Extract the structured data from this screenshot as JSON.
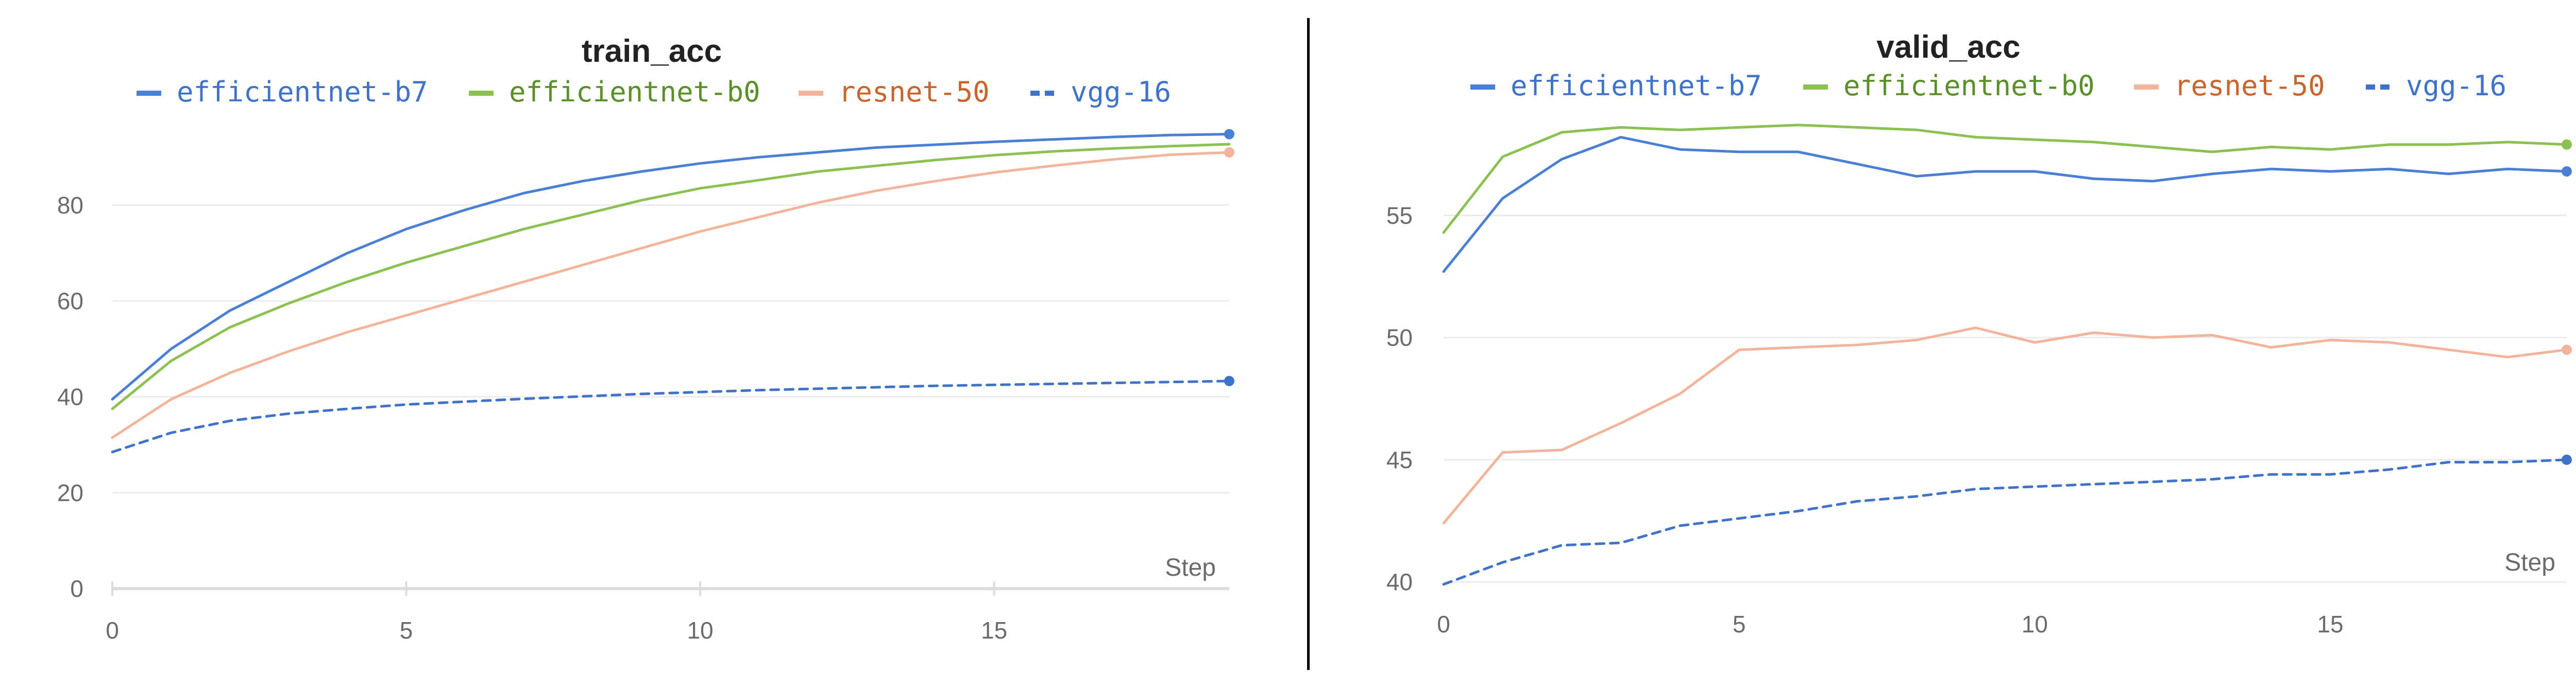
{
  "chart_data": [
    {
      "type": "line",
      "title": "train_acc",
      "xlabel": "Step",
      "ylabel": "",
      "xlim": [
        0,
        19
      ],
      "ylim": [
        0,
        97
      ],
      "x_ticks": [
        0,
        5,
        10,
        15
      ],
      "y_ticks": [
        0,
        20,
        40,
        60,
        80
      ],
      "grid": true,
      "legend_position": "top",
      "x": [
        0,
        1,
        2,
        3,
        4,
        5,
        6,
        7,
        8,
        9,
        10,
        11,
        12,
        13,
        14,
        15,
        16,
        17,
        18,
        19
      ],
      "series": [
        {
          "name": "efficientnet-b7",
          "color": "#4a7fd6",
          "text_color": "#3f72c9",
          "dashed": false,
          "end_marker": true,
          "values": [
            39.5,
            50,
            58,
            64,
            70,
            75,
            79,
            82.5,
            85,
            87,
            88.7,
            90,
            91,
            92,
            92.6,
            93.2,
            93.7,
            94.2,
            94.6,
            94.8
          ]
        },
        {
          "name": "efficientnet-b0",
          "color": "#8cc152",
          "text_color": "#5a8f2a",
          "dashed": false,
          "end_marker": false,
          "values": [
            37.5,
            47.5,
            54.5,
            59.5,
            64,
            68,
            71.5,
            75,
            78,
            81,
            83.5,
            85.2,
            87,
            88.2,
            89.4,
            90.4,
            91.2,
            91.8,
            92.3,
            92.7
          ]
        },
        {
          "name": "resnet-50",
          "color": "#f2b59b",
          "text_color": "#c8642e",
          "dashed": false,
          "end_marker": true,
          "values": [
            31.5,
            39.5,
            45,
            49.5,
            53.5,
            57,
            60.5,
            64,
            67.5,
            71,
            74.5,
            77.5,
            80.5,
            83,
            85,
            86.8,
            88.2,
            89.5,
            90.5,
            91
          ]
        },
        {
          "name": "vgg-16",
          "color": "#3f72c9",
          "text_color": "#3f72c9",
          "dashed": true,
          "end_marker": true,
          "values": [
            28.5,
            32.5,
            35,
            36.5,
            37.5,
            38.4,
            39,
            39.6,
            40.1,
            40.6,
            41,
            41.4,
            41.7,
            42,
            42.3,
            42.5,
            42.7,
            42.9,
            43.1,
            43.3
          ]
        }
      ]
    },
    {
      "type": "line",
      "title": "valid_acc",
      "xlabel": "Step",
      "ylabel": "",
      "xlim": [
        0,
        19
      ],
      "ylim": [
        40,
        59.6
      ],
      "x_ticks": [
        0,
        5,
        10,
        15
      ],
      "y_ticks": [
        40,
        45,
        50,
        55
      ],
      "grid": true,
      "legend_position": "top",
      "x": [
        0,
        1,
        2,
        3,
        4,
        5,
        6,
        7,
        8,
        9,
        10,
        11,
        12,
        13,
        14,
        15,
        16,
        17,
        18,
        19
      ],
      "series": [
        {
          "name": "efficientnet-b7",
          "color": "#4a7fd6",
          "text_color": "#3f72c9",
          "dashed": false,
          "end_marker": true,
          "values": [
            52.7,
            55.7,
            57.3,
            58.2,
            57.7,
            57.6,
            57.6,
            57.1,
            56.6,
            56.8,
            56.8,
            56.5,
            56.4,
            56.7,
            56.9,
            56.8,
            56.9,
            56.7,
            56.9,
            56.8
          ]
        },
        {
          "name": "efficientnet-b0",
          "color": "#8cc152",
          "text_color": "#5a8f2a",
          "dashed": false,
          "end_marker": true,
          "values": [
            54.3,
            57.4,
            58.4,
            58.6,
            58.5,
            58.6,
            58.7,
            58.6,
            58.5,
            58.2,
            58.1,
            58,
            57.8,
            57.6,
            57.8,
            57.7,
            57.9,
            57.9,
            58,
            57.9
          ]
        },
        {
          "name": "resnet-50",
          "color": "#f2b59b",
          "text_color": "#c8642e",
          "dashed": false,
          "end_marker": true,
          "values": [
            42.4,
            45.3,
            45.4,
            46.5,
            47.7,
            49.5,
            49.6,
            49.7,
            49.9,
            50.4,
            49.8,
            50.2,
            50,
            50.1,
            49.6,
            49.9,
            49.8,
            49.5,
            49.2,
            49.5
          ]
        },
        {
          "name": "vgg-16",
          "color": "#3f72c9",
          "text_color": "#3f72c9",
          "dashed": true,
          "end_marker": true,
          "values": [
            39.9,
            40.8,
            41.5,
            41.6,
            42.3,
            42.6,
            42.9,
            43.3,
            43.5,
            43.8,
            43.9,
            44,
            44.1,
            44.2,
            44.4,
            44.4,
            44.6,
            44.9,
            44.9,
            45
          ]
        }
      ]
    }
  ]
}
